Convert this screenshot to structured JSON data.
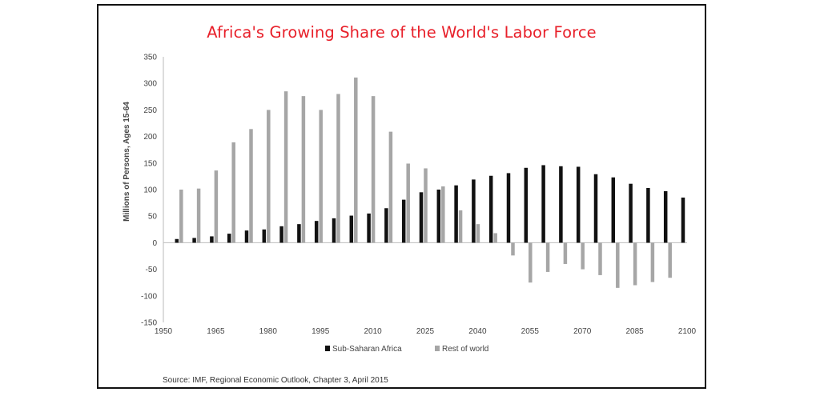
{
  "chart_data": {
    "type": "bar",
    "title": "Africa's Growing Share of the World's Labor Force",
    "ylabel": "Millions of Persons, Ages 15-64",
    "xlabel": "",
    "source": "Source: IMF, Regional Economic Outlook, Chapter 3, April 2015",
    "ylim": [
      -150,
      350
    ],
    "yticks": [
      350,
      300,
      250,
      200,
      150,
      100,
      50,
      0,
      -50,
      -100,
      -150
    ],
    "xlim": [
      1950,
      2100
    ],
    "xticks": [
      1950,
      1965,
      1980,
      1995,
      2010,
      2025,
      2040,
      2055,
      2070,
      2085,
      2100
    ],
    "x": [
      1955,
      1960,
      1965,
      1970,
      1975,
      1980,
      1985,
      1990,
      1995,
      2000,
      2005,
      2010,
      2015,
      2020,
      2025,
      2030,
      2035,
      2040,
      2045,
      2050,
      2055,
      2060,
      2065,
      2070,
      2075,
      2080,
      2085,
      2090,
      2095,
      2100
    ],
    "series": [
      {
        "name": "Sub-Saharan Africa",
        "color": "#111111",
        "values": [
          7,
          9,
          12,
          17,
          23,
          25,
          31,
          35,
          41,
          46,
          51,
          55,
          65,
          81,
          95,
          100,
          108,
          119,
          126,
          131,
          141,
          146,
          144,
          143,
          129,
          123,
          111,
          103,
          97,
          85
        ]
      },
      {
        "name": "Rest of world",
        "color": "#a6a6a6",
        "values": [
          100,
          102,
          136,
          189,
          214,
          250,
          285,
          276,
          250,
          280,
          311,
          276,
          209,
          149,
          140,
          106,
          61,
          35,
          18,
          -24,
          -75,
          -55,
          -40,
          -50,
          -61,
          -85,
          -80,
          -74,
          -66,
          null
        ]
      }
    ],
    "legend": "bottom",
    "grid": false
  }
}
